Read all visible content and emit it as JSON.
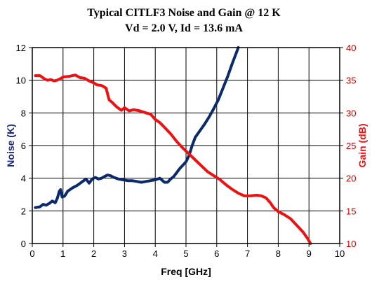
{
  "chart_data": {
    "type": "line",
    "title": "Typical CITLF3 Noise and Gain @ 12 K",
    "subtitle": "Vd = 2.0 V, Id = 13.6 mA",
    "xlabel": "Freq [GHz]",
    "ylabel_left": "Noise (K)",
    "ylabel_right": "Gain (dB)",
    "xlim": [
      0,
      10
    ],
    "ylim_left": [
      0,
      12
    ],
    "ylim_right": [
      10,
      40
    ],
    "x_ticks": [
      "0",
      "1",
      "2",
      "3",
      "4",
      "5",
      "6",
      "7",
      "8",
      "9",
      "10"
    ],
    "y_ticks_left": [
      "0",
      "2",
      "4",
      "6",
      "8",
      "10",
      "12"
    ],
    "y_ticks_right": [
      "10",
      "15",
      "20",
      "25",
      "30",
      "35",
      "40"
    ],
    "grid": true,
    "series": [
      {
        "axis": "left",
        "color": "#0b2a6e",
        "x": [
          0.1,
          0.25,
          0.35,
          0.45,
          0.55,
          0.65,
          0.75,
          0.82,
          0.88,
          0.92,
          0.97,
          1.05,
          1.15,
          1.3,
          1.45,
          1.6,
          1.75,
          1.85,
          1.95,
          2.05,
          2.15,
          2.25,
          2.35,
          2.45,
          2.55,
          2.65,
          2.8,
          2.95,
          3.1,
          3.25,
          3.4,
          3.55,
          3.7,
          3.85,
          4.0,
          4.15,
          4.3,
          4.4,
          4.5,
          4.6,
          4.7,
          4.8,
          4.9,
          5.0,
          5.1,
          5.2,
          5.3,
          5.45,
          5.6,
          5.75,
          5.9,
          6.05,
          6.2,
          6.35,
          6.5,
          6.6,
          6.7
        ],
        "values": [
          2.2,
          2.25,
          2.4,
          2.35,
          2.45,
          2.6,
          2.5,
          2.8,
          3.2,
          3.3,
          2.85,
          2.9,
          3.2,
          3.4,
          3.55,
          3.75,
          3.95,
          3.7,
          3.95,
          4.05,
          3.95,
          4.0,
          4.1,
          4.2,
          4.15,
          4.05,
          3.95,
          3.9,
          3.85,
          3.85,
          3.8,
          3.75,
          3.8,
          3.85,
          3.9,
          4.0,
          3.75,
          3.75,
          3.95,
          4.1,
          4.35,
          4.6,
          4.8,
          5.0,
          5.4,
          6.0,
          6.5,
          6.9,
          7.3,
          7.75,
          8.25,
          8.8,
          9.5,
          10.2,
          11.0,
          11.5,
          12.0
        ]
      },
      {
        "axis": "right",
        "color": "#ee1111",
        "x": [
          0.1,
          0.25,
          0.4,
          0.5,
          0.6,
          0.7,
          0.8,
          0.9,
          1.0,
          1.2,
          1.4,
          1.55,
          1.7,
          1.85,
          2.0,
          2.1,
          2.25,
          2.4,
          2.5,
          2.6,
          2.75,
          2.9,
          3.0,
          3.15,
          3.3,
          3.5,
          3.7,
          3.85,
          4.0,
          4.15,
          4.3,
          4.5,
          4.7,
          4.9,
          5.1,
          5.3,
          5.5,
          5.7,
          5.9,
          6.1,
          6.3,
          6.5,
          6.7,
          6.9,
          7.1,
          7.3,
          7.45,
          7.6,
          7.75,
          7.85,
          8.0,
          8.2,
          8.4,
          8.6,
          8.8,
          8.95,
          9.05
        ],
        "values": [
          35.7,
          35.7,
          35.2,
          35.0,
          35.1,
          34.9,
          35.0,
          35.2,
          35.5,
          35.6,
          35.8,
          35.4,
          35.3,
          34.9,
          34.6,
          34.3,
          34.2,
          33.8,
          32.0,
          31.6,
          30.9,
          30.4,
          30.8,
          30.3,
          30.5,
          30.3,
          30.0,
          29.8,
          29.0,
          28.5,
          27.8,
          26.8,
          25.6,
          24.6,
          23.7,
          22.8,
          21.9,
          21.0,
          20.4,
          19.8,
          19.0,
          18.3,
          17.7,
          17.3,
          17.3,
          17.4,
          17.3,
          17.0,
          16.2,
          15.5,
          14.9,
          14.4,
          13.8,
          12.8,
          11.8,
          10.8,
          10.0
        ]
      }
    ]
  }
}
